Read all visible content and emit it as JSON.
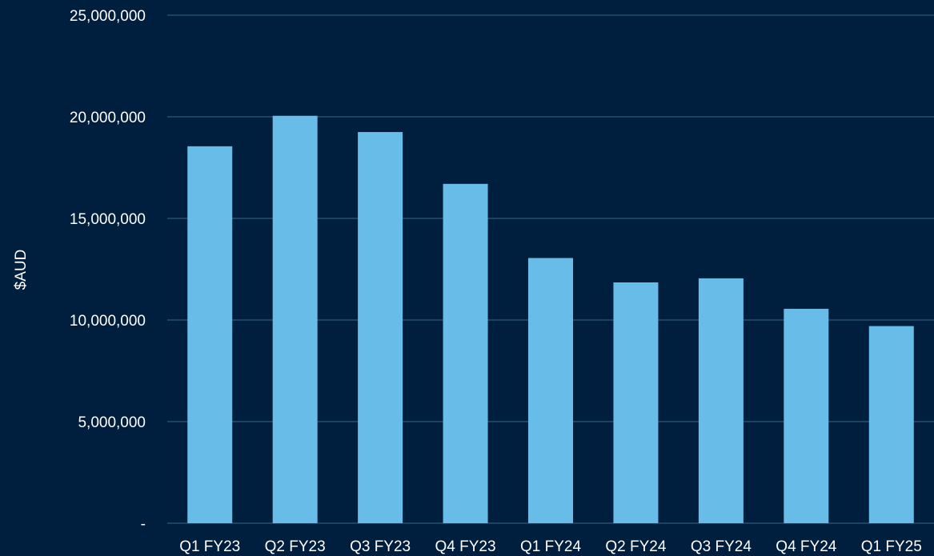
{
  "colors": {
    "background": "#001e3d",
    "bar": "#67bde8",
    "gridline": "#2e5a7a",
    "text": "#ffffff"
  },
  "chart_data": {
    "type": "bar",
    "ylabel": "$AUD",
    "ylim": [
      0,
      25000000
    ],
    "yticks": [
      0,
      5000000,
      10000000,
      15000000,
      20000000,
      25000000
    ],
    "ytick_labels": [
      "-",
      "5,000,000",
      "10,000,000",
      "15,000,000",
      "20,000,000",
      "25,000,000"
    ],
    "categories": [
      "Q1 FY23",
      "Q2 FY23",
      "Q3 FY23",
      "Q4 FY23",
      "Q1 FY24",
      "Q2 FY24",
      "Q3 FY24",
      "Q4 FY24",
      "Q1 FY25"
    ],
    "values": [
      18550000,
      20050000,
      19250000,
      16700000,
      13050000,
      11850000,
      12050000,
      10550000,
      9700000
    ],
    "grid": true,
    "legend": "none"
  }
}
